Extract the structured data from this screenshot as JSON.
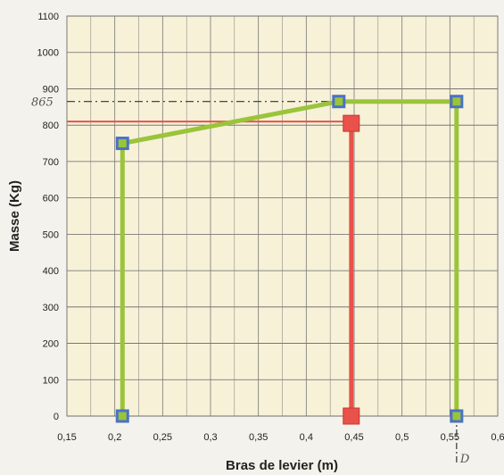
{
  "chart_data": {
    "type": "scatter",
    "xlabel": "Bras de levier (m)",
    "ylabel": "Masse (Kg)",
    "xlim": [
      0.15,
      0.6
    ],
    "ylim": [
      0,
      1100
    ],
    "xticks": [
      "0,15",
      "0,2",
      "0,25",
      "0,3",
      "0,35",
      "0,4",
      "0,45",
      "0,5",
      "0,55",
      "0,6"
    ],
    "yticks": [
      "0",
      "100",
      "200",
      "300",
      "400",
      "500",
      "600",
      "700",
      "800",
      "900",
      "1000",
      "1100"
    ],
    "grid": true,
    "series": [
      {
        "color": "#9ac43a",
        "marker_color": "#4a72c4",
        "marker": "square",
        "x": [
          0.208,
          0.208,
          0.434,
          0.557,
          0.557
        ],
        "y": [
          0,
          750,
          865,
          865,
          0
        ]
      },
      {
        "color": "#e8524a",
        "marker_color": "#e8524a",
        "marker": "square",
        "x": [
          0.447,
          0.447
        ],
        "y": [
          805,
          0
        ]
      }
    ],
    "annotations": [
      {
        "type": "hline",
        "style": "dashed",
        "y": 865,
        "x_to": 0.557,
        "label": "865"
      },
      {
        "type": "hline",
        "style": "solid",
        "color": "#e8524a",
        "y": 810,
        "x_to": 0.447
      },
      {
        "type": "vline",
        "style": "dashed",
        "x": 0.557,
        "y_from": 0,
        "label": "D"
      }
    ]
  }
}
